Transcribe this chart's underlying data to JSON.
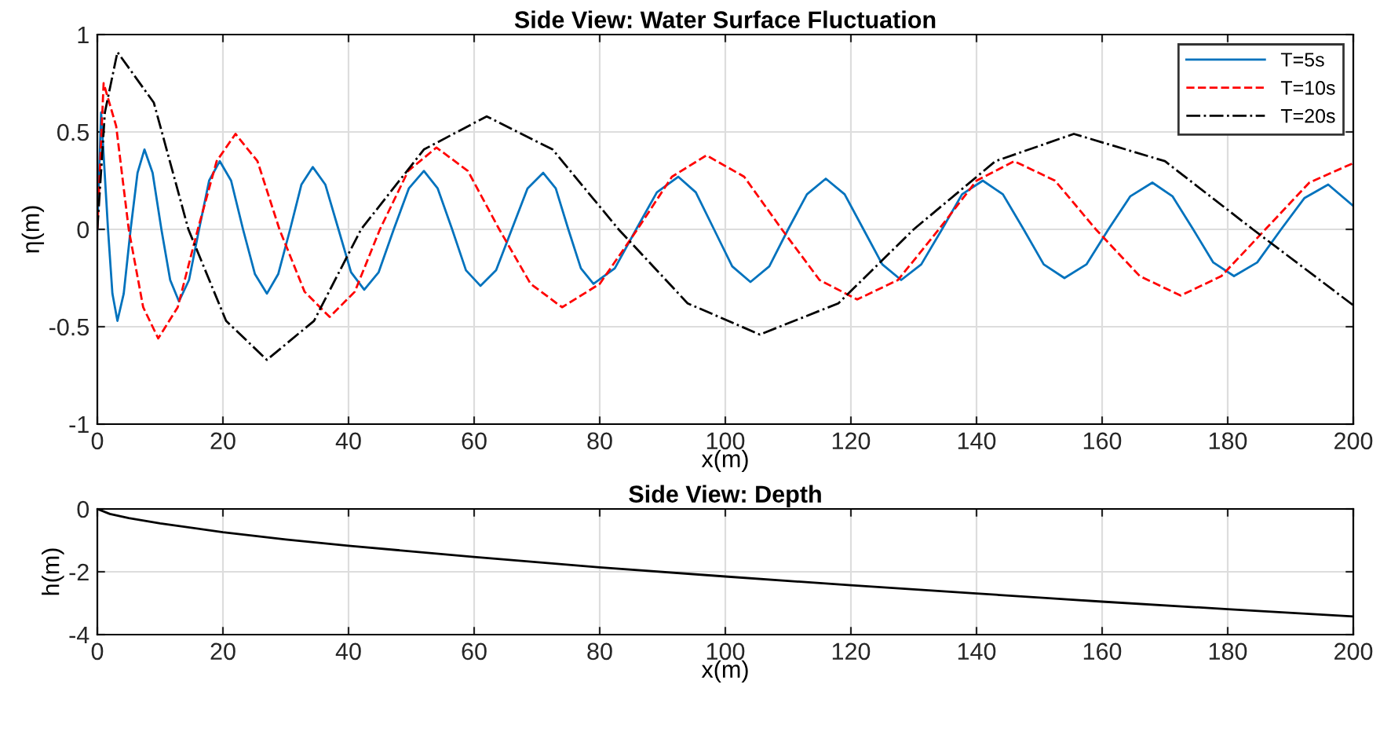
{
  "chart_data": [
    {
      "type": "line",
      "title": "Side View: Water Surface Fluctuation",
      "xlabel": "x(m)",
      "ylabel": "η(m)",
      "xlim": [
        0,
        200
      ],
      "xticks": [
        0,
        20,
        40,
        60,
        80,
        100,
        120,
        140,
        160,
        180,
        200
      ],
      "ylim": [
        -1,
        1
      ],
      "yticks": [
        -1,
        -0.5,
        0,
        0.5,
        1
      ],
      "grid": true,
      "legend": "top right",
      "series": [
        {
          "name": "T=5s",
          "color": "#0072bd",
          "line_style": "solid",
          "x": [
            0,
            0.6,
            1.7,
            2.4,
            3.2,
            4.2,
            5.3,
            6.4,
            7.5,
            8.8,
            10.2,
            11.6,
            13,
            14.6,
            16.2,
            17.8,
            19.5,
            21.3,
            23.2,
            25.1,
            27,
            28.8,
            30.7,
            32.5,
            34.3,
            36.3,
            38.4,
            40.4,
            42.5,
            44.8,
            47.2,
            49.6,
            52,
            54.2,
            56.5,
            58.7,
            61,
            63.5,
            66,
            68.5,
            71,
            73,
            75,
            77,
            79,
            82.4,
            85.8,
            89.1,
            92.5,
            95.3,
            98.2,
            101.1,
            104,
            107,
            110,
            113,
            116,
            119,
            122,
            125,
            128,
            131.2,
            134.5,
            137.7,
            141,
            144.2,
            147.5,
            150.7,
            154,
            157.5,
            161,
            164.5,
            168,
            171.2,
            174.5,
            177.7,
            181,
            184.7,
            188.5,
            192.2,
            196,
            200
          ],
          "values": [
            0,
            0.6,
            0,
            -0.33,
            -0.47,
            -0.33,
            0,
            0.29,
            0.41,
            0.29,
            0,
            -0.26,
            -0.37,
            -0.26,
            0,
            0.25,
            0.35,
            0.25,
            0,
            -0.23,
            -0.33,
            -0.23,
            0,
            0.23,
            0.32,
            0.23,
            0,
            -0.22,
            -0.31,
            -0.22,
            0,
            0.21,
            0.3,
            0.21,
            0,
            -0.21,
            -0.29,
            -0.21,
            0,
            0.21,
            0.29,
            0.21,
            0,
            -0.2,
            -0.28,
            -0.2,
            0,
            0.19,
            0.27,
            0.19,
            0,
            -0.19,
            -0.27,
            -0.19,
            0,
            0.18,
            0.26,
            0.18,
            0,
            -0.18,
            -0.26,
            -0.18,
            0,
            0.18,
            0.25,
            0.18,
            0,
            -0.18,
            -0.25,
            -0.18,
            0,
            0.17,
            0.24,
            0.17,
            0,
            -0.17,
            -0.24,
            -0.17,
            0,
            0.16,
            0.23,
            0.12
          ]
        },
        {
          "name": "T=10s",
          "color": "#ff0000",
          "line_style": "dashed",
          "x": [
            0,
            1,
            3,
            5,
            7.3,
            9.7,
            12.8,
            16,
            19,
            22,
            25.5,
            29,
            33,
            37,
            41,
            45,
            49.5,
            54,
            59,
            64,
            69,
            74,
            80,
            86,
            91.5,
            97,
            103,
            109,
            115,
            121,
            127.5,
            134,
            140,
            146,
            152.5,
            159,
            166,
            172.5,
            179,
            186,
            193,
            200
          ],
          "values": [
            0,
            0.75,
            0.53,
            0,
            -0.4,
            -0.56,
            -0.4,
            0,
            0.35,
            0.49,
            0.35,
            0,
            -0.32,
            -0.45,
            -0.32,
            0,
            0.3,
            0.42,
            0.3,
            0,
            -0.28,
            -0.4,
            -0.28,
            0,
            0.27,
            0.38,
            0.27,
            0,
            -0.26,
            -0.36,
            -0.26,
            0,
            0.25,
            0.35,
            0.25,
            0,
            -0.24,
            -0.34,
            -0.24,
            0,
            0.24,
            0.34
          ]
        },
        {
          "name": "T=20s",
          "color": "#000000",
          "line_style": "dashdot",
          "x": [
            0,
            1.2,
            3.2,
            9,
            14.5,
            20.5,
            27,
            34.5,
            42,
            52,
            62,
            72.5,
            83,
            94,
            105.5,
            118,
            130,
            143,
            155.5,
            170,
            184,
            200
          ],
          "values": [
            0,
            0.6,
            0.91,
            0.65,
            0,
            -0.47,
            -0.67,
            -0.47,
            0,
            0.41,
            0.58,
            0.41,
            0,
            -0.38,
            -0.54,
            -0.38,
            0,
            0.35,
            0.49,
            0.35,
            0,
            -0.39
          ]
        }
      ]
    },
    {
      "type": "line",
      "title": "Side View: Depth",
      "xlabel": "x(m)",
      "ylabel": "h(m)",
      "xlim": [
        0,
        200
      ],
      "xticks": [
        0,
        20,
        40,
        60,
        80,
        100,
        120,
        140,
        160,
        180,
        200
      ],
      "ylim": [
        -4,
        0
      ],
      "yticks": [
        -4,
        -2,
        0
      ],
      "grid": true,
      "series": [
        {
          "color": "#000000",
          "line_style": "solid",
          "x": [
            0,
            2,
            5,
            10,
            20,
            30,
            40,
            60,
            80,
            100,
            120,
            140,
            160,
            180,
            200
          ],
          "values": [
            0,
            -0.16,
            -0.29,
            -0.46,
            -0.74,
            -0.97,
            -1.17,
            -1.53,
            -1.86,
            -2.15,
            -2.43,
            -2.69,
            -2.95,
            -3.19,
            -3.42
          ]
        }
      ]
    }
  ]
}
